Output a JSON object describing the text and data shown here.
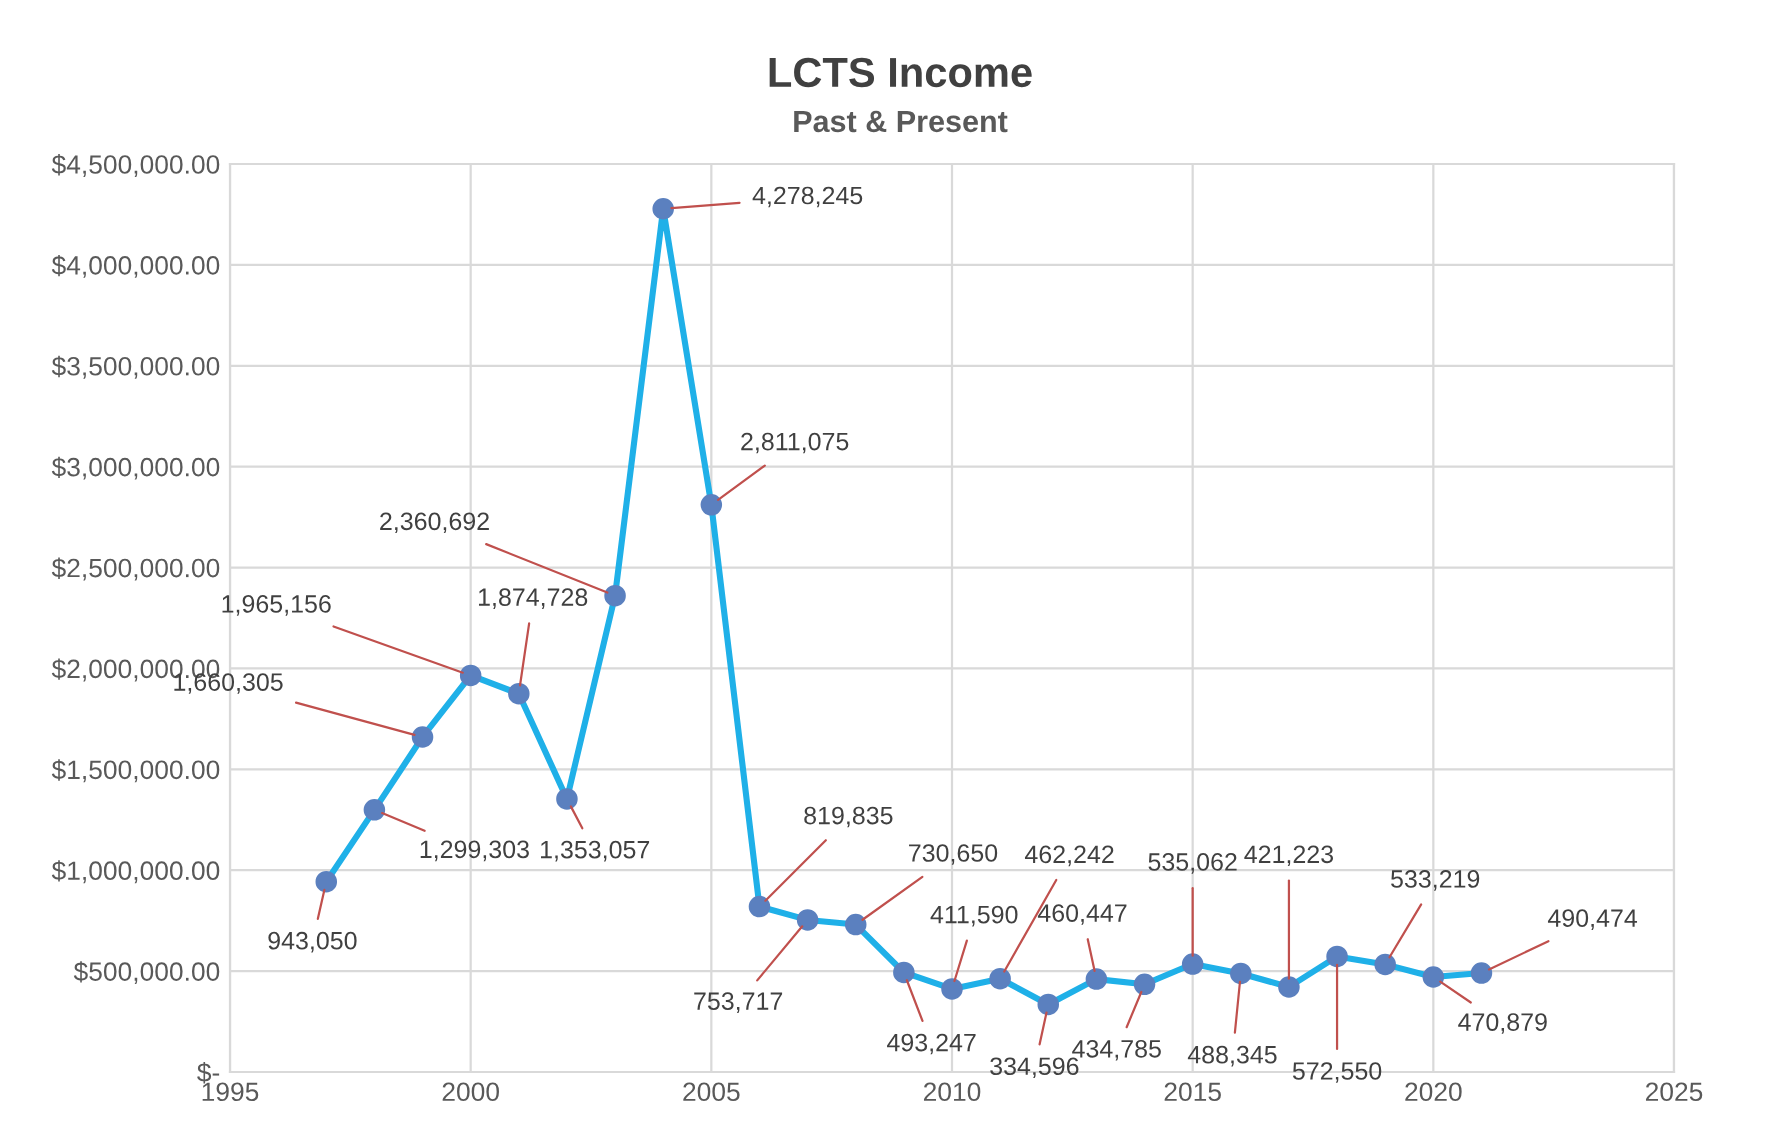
{
  "chart_data": {
    "type": "line",
    "title": "LCTS Income",
    "subtitle": "Past & Present",
    "x": [
      1997,
      1998,
      1999,
      2000,
      2001,
      2002,
      2003,
      2004,
      2005,
      2006,
      2007,
      2008,
      2009,
      2010,
      2011,
      2012,
      2013,
      2014,
      2015,
      2016,
      2017,
      2018,
      2019,
      2020,
      2021
    ],
    "series": [
      {
        "color": "#1fb0e8",
        "values": [
          943050,
          1299303,
          1660305,
          1965156,
          1874728,
          1353057,
          2360692,
          4278245,
          2811075,
          819835,
          753717,
          730650,
          493247,
          411590,
          462242,
          334596,
          460447,
          434785,
          535062,
          488345,
          421223,
          572550,
          533219,
          470879,
          490474
        ],
        "value_labels": [
          "943,050",
          "1,299,303",
          "1,660,305",
          "1,965,156",
          "1,874,728",
          "1,353,057",
          "2,360,692",
          "4,278,245",
          "2,811,075",
          "819,835",
          "753,717",
          "730,650",
          "493,247",
          "411,590",
          "462,242",
          "334,596",
          "460,447",
          "434,785",
          "535,062",
          "488,345",
          "421,223",
          "572,550",
          "533,219",
          "470,879",
          "490,474"
        ]
      }
    ],
    "xlim": [
      1995,
      2025
    ],
    "xticks": [
      1995,
      2000,
      2005,
      2010,
      2015,
      2020,
      2025
    ],
    "ylim": [
      0,
      4500000
    ],
    "yticks": [
      {
        "value": 0,
        "label": "$-"
      },
      {
        "value": 500000,
        "label": "$500,000.00"
      },
      {
        "value": 1000000,
        "label": "$1,000,000.00"
      },
      {
        "value": 1500000,
        "label": "$1,500,000.00"
      },
      {
        "value": 2000000,
        "label": "$2,000,000.00"
      },
      {
        "value": 2500000,
        "label": "$2,500,000.00"
      },
      {
        "value": 3000000,
        "label": "$3,000,000.00"
      },
      {
        "value": 3500000,
        "label": "$3,500,000.00"
      },
      {
        "value": 4000000,
        "label": "$4,000,000.00"
      },
      {
        "value": 4500000,
        "label": "$4,500,000.00"
      }
    ],
    "grid": true,
    "marker": "circle",
    "line_style": "solid"
  }
}
